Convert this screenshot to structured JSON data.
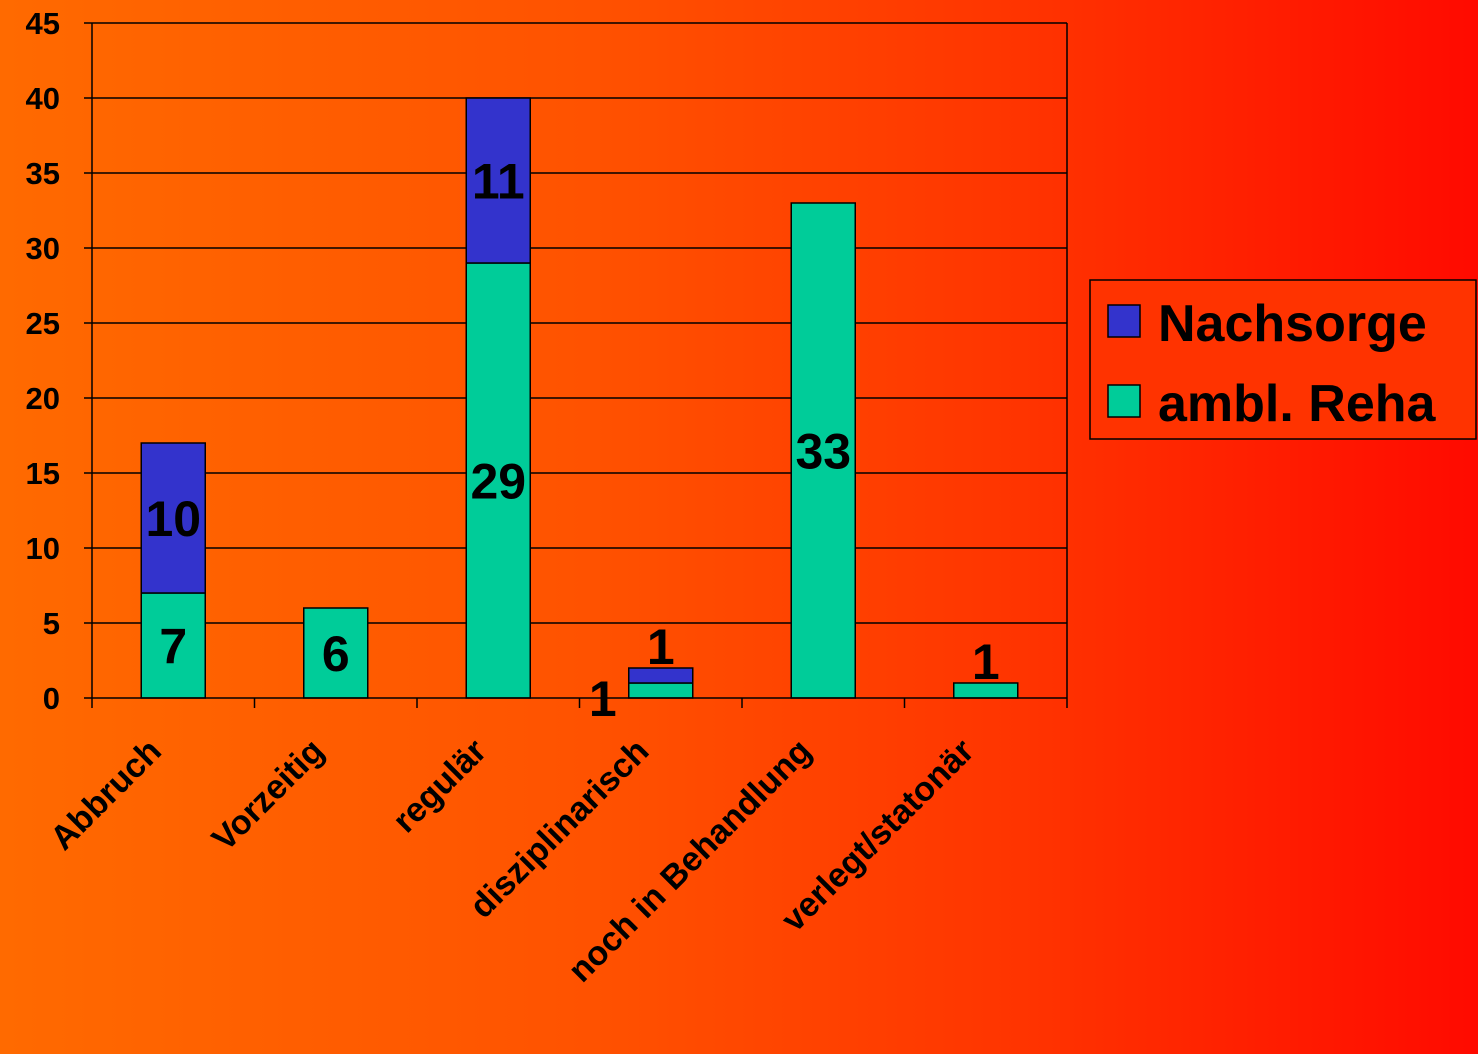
{
  "chart_data": {
    "type": "bar",
    "stacked": true,
    "categories": [
      "Abbruch",
      "Vorzeitig",
      "regulär",
      "disziplinarisch",
      "noch in Behandlung",
      "verlegt/statonär"
    ],
    "series": [
      {
        "name": "ambl. Reha",
        "color": "#00cc99",
        "values": [
          7,
          6,
          29,
          1,
          33,
          1
        ]
      },
      {
        "name": "Nachsorge",
        "color": "#3333cc",
        "values": [
          10,
          0,
          11,
          1,
          0,
          0
        ]
      }
    ],
    "data_labels": [
      {
        "category": "Abbruch",
        "series": "ambl. Reha",
        "text": "7"
      },
      {
        "category": "Abbruch",
        "series": "Nachsorge",
        "text": "10"
      },
      {
        "category": "Vorzeitig",
        "series": "ambl. Reha",
        "text": "6"
      },
      {
        "category": "regulär",
        "series": "ambl. Reha",
        "text": "29"
      },
      {
        "category": "regulär",
        "series": "Nachsorge",
        "text": "11"
      },
      {
        "category": "disziplinarisch",
        "series": "ambl. Reha",
        "text": "1"
      },
      {
        "category": "disziplinarisch",
        "series": "Nachsorge",
        "text": "1"
      },
      {
        "category": "noch in Behandlung",
        "series": "ambl. Reha",
        "text": "33"
      },
      {
        "category": "verlegt/statonär",
        "series": "ambl. Reha",
        "text": "1"
      }
    ],
    "yticks": [
      "0",
      "5",
      "10",
      "15",
      "20",
      "25",
      "30",
      "35",
      "40",
      "45"
    ],
    "ylim": [
      0,
      45
    ],
    "grid": true,
    "legend": {
      "position": "right",
      "items": [
        {
          "label": "Nachsorge",
          "color": "#3333cc"
        },
        {
          "label": "ambl. Reha",
          "color": "#00cc99"
        }
      ],
      "background": "#ff3300"
    },
    "title": "",
    "xlabel": "",
    "ylabel": ""
  }
}
